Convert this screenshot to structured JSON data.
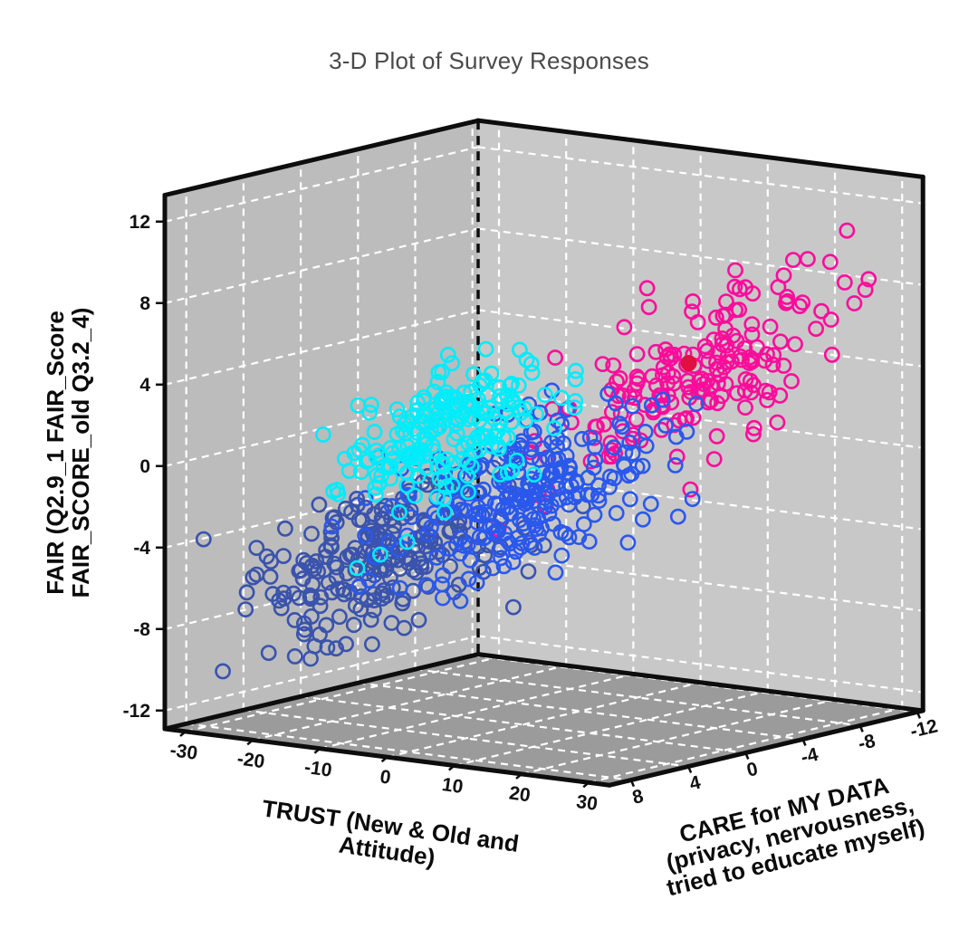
{
  "title": "3-D Plot of Survey Responses",
  "chart_data": {
    "type": "scatter",
    "projection": "3d",
    "title": "3-D Plot of Survey Responses",
    "grid": {
      "on": true,
      "style": "white-dashed",
      "box": "two-walls-and-floor"
    },
    "axes": {
      "x": {
        "label_lines": [
          "TRUST (New & Old and",
          "Attitude)"
        ],
        "ticks": [
          -30,
          -20,
          -10,
          0,
          10,
          20,
          30
        ],
        "range": [
          -33.1,
          33.1
        ]
      },
      "y": {
        "label_lines": [
          "CARE for MY DATA",
          "(privacy, nervousness,",
          "tried to educate myself)"
        ],
        "ticks": [
          8,
          4,
          0,
          -4,
          -8,
          -12
        ],
        "range": [
          9.5,
          -12.4
        ]
      },
      "z": {
        "label_lines": [
          "FAIR (Q2.9_1 FAIR_Score",
          "FAIR_SCORE_old Q3.2_4)"
        ],
        "ticks": [
          12,
          8,
          4,
          0,
          -4,
          -8,
          -12
        ],
        "range": [
          -12.9,
          13.3
        ]
      }
    },
    "style": {
      "wall_left": "#bcbcbc",
      "wall_right": "#c8c8c8",
      "floor": "#9b9b9b",
      "grid_line": "#ffffff",
      "edge": "#0d0d0d",
      "title_color": "#4a4a4a",
      "marker_radius": 7.6,
      "marker_stroke_width": 2.6
    },
    "series": [
      {
        "name": "cluster-dark-blue",
        "marker": "open-circle",
        "color": "#3a53ac",
        "count": 230,
        "center": {
          "trust": -16,
          "care": 2.5,
          "fair": -5.0
        },
        "spread": {
          "trust": 7.2,
          "care": 2.5,
          "fair": 1.9
        },
        "trend": {
          "care_vs_trust": -0.1,
          "fair_vs_trust": 0.17
        }
      },
      {
        "name": "cluster-pink",
        "marker": "open-circle",
        "color": "#fa0d9b",
        "count": 185,
        "center": {
          "trust": 14,
          "care": -5.5,
          "fair": 4.2
        },
        "spread": {
          "trust": 6.8,
          "care": 2.6,
          "fair": 2.0
        },
        "trend": {
          "care_vs_trust": -0.22,
          "fair_vs_trust": 0.22
        }
      },
      {
        "name": "cluster-blue",
        "marker": "open-circle",
        "color": "#2a58ec",
        "count": 250,
        "center": {
          "trust": 1,
          "care": 0.5,
          "fair": -1.6
        },
        "spread": {
          "trust": 6.8,
          "care": 2.6,
          "fair": 2.0
        },
        "trend": {
          "care_vs_trust": -0.12,
          "fair_vs_trust": 0.15
        }
      },
      {
        "name": "cluster-cyan",
        "marker": "open-circle",
        "color": "#00ecfa",
        "count": 215,
        "center": {
          "trust": -5,
          "care": 3.0,
          "fair": 1.8
        },
        "spread": {
          "trust": 6.3,
          "care": 2.4,
          "fair": 1.8
        },
        "trend": {
          "care_vs_trust": -0.12,
          "fair_vs_trust": 0.16
        }
      }
    ],
    "highlight_point": {
      "name": "filled-red-point",
      "marker": "filled-circle",
      "color": "#e01042",
      "trust": 14,
      "care": -5,
      "fair": 4.6
    }
  }
}
